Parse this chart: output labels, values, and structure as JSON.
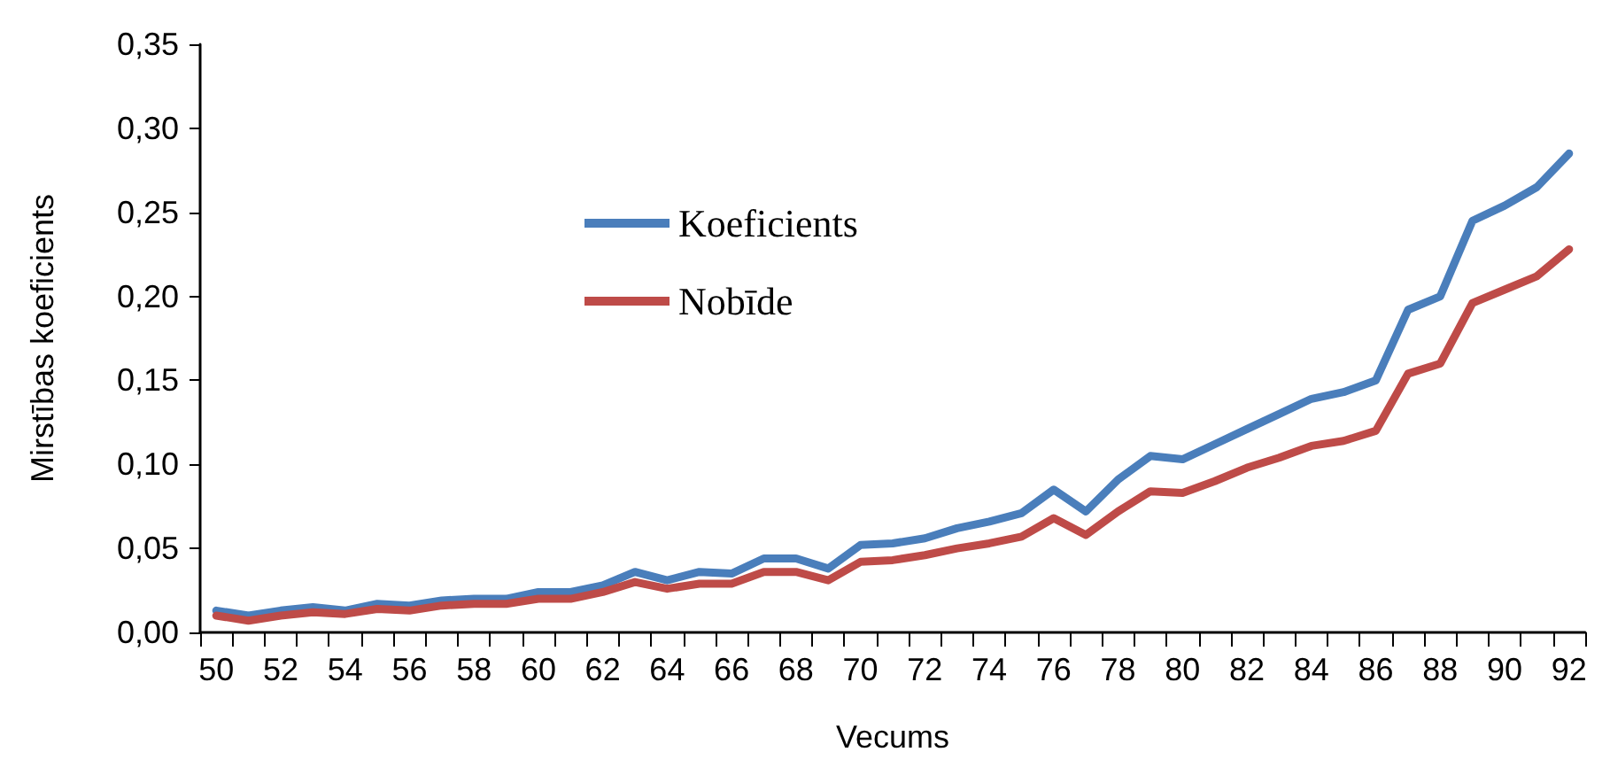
{
  "chart_data": {
    "type": "line",
    "xlabel": "Vecums",
    "ylabel": "Mirstības koeficients",
    "categories": [
      "50",
      null,
      "52",
      null,
      "54",
      null,
      "56",
      null,
      "58",
      null,
      "60",
      null,
      "62",
      null,
      "64",
      null,
      "66",
      null,
      "68",
      null,
      "70",
      null,
      "72",
      null,
      "74",
      null,
      "76",
      null,
      "78",
      null,
      "80",
      null,
      "82",
      null,
      "84",
      null,
      "86",
      null,
      "88",
      null,
      "90",
      null,
      "92"
    ],
    "series": [
      {
        "name": "Koeficients",
        "color": "#4a7ebb",
        "values": [
          0.013,
          0.01,
          0.013,
          0.015,
          0.013,
          0.017,
          0.016,
          0.019,
          0.02,
          0.02,
          0.024,
          0.024,
          0.028,
          0.036,
          0.031,
          0.036,
          0.035,
          0.044,
          0.044,
          0.038,
          0.052,
          0.053,
          0.056,
          0.062,
          0.066,
          0.071,
          0.085,
          0.072,
          0.091,
          0.105,
          0.103,
          0.112,
          0.121,
          0.13,
          0.139,
          0.143,
          0.15,
          0.192,
          0.2,
          0.245,
          0.254,
          0.265,
          0.285
        ]
      },
      {
        "name": "Nobīde",
        "color": "#be4b48",
        "values": [
          0.01,
          0.007,
          0.01,
          0.012,
          0.011,
          0.014,
          0.013,
          0.016,
          0.017,
          0.017,
          0.02,
          0.02,
          0.024,
          0.03,
          0.026,
          0.029,
          0.029,
          0.036,
          0.036,
          0.031,
          0.042,
          0.043,
          0.046,
          0.05,
          0.053,
          0.057,
          0.068,
          0.058,
          0.072,
          0.084,
          0.083,
          0.09,
          0.098,
          0.104,
          0.111,
          0.114,
          0.12,
          0.154,
          0.16,
          0.196,
          0.204,
          0.212,
          0.228
        ]
      }
    ],
    "ylim": [
      0,
      0.35
    ],
    "yticks": [
      {
        "value": 0,
        "label": "0,00"
      },
      {
        "value": 0.05,
        "label": "0,05"
      },
      {
        "value": 0.1,
        "label": "0,10"
      },
      {
        "value": 0.15,
        "label": "0,15"
      },
      {
        "value": 0.2,
        "label": "0,20"
      },
      {
        "value": 0.25,
        "label": "0,25"
      },
      {
        "value": 0.3,
        "label": "0,30"
      },
      {
        "value": 0.35,
        "label": "0,35"
      }
    ],
    "grid": false,
    "legend": "top left",
    "marker": "none",
    "line_style": "solid"
  }
}
